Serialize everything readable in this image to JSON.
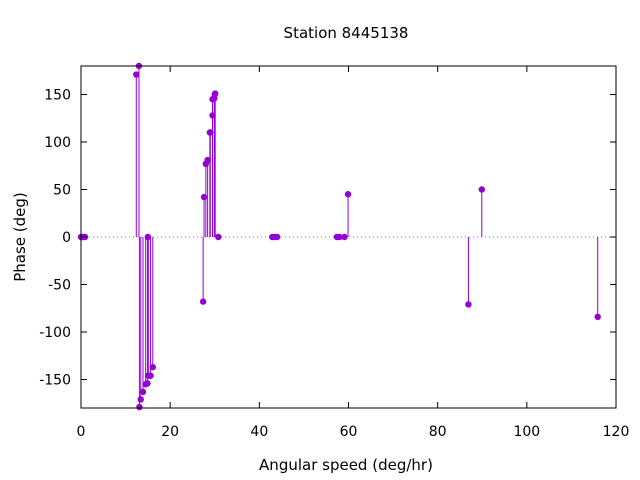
{
  "chart_data": {
    "type": "scatter",
    "style": "impulses-with-points",
    "title": "Station 8445138",
    "xlabel": "Angular speed (deg/hr)",
    "ylabel": "Phase (deg)",
    "xlim": [
      0,
      120
    ],
    "ylim": [
      -180,
      180
    ],
    "xticks": [
      0,
      20,
      40,
      60,
      80,
      100,
      120
    ],
    "yticks": [
      -150,
      -100,
      -50,
      0,
      50,
      100,
      150
    ],
    "xtick_labels": [
      "0",
      "20",
      "40",
      "60",
      "80",
      "100",
      "120"
    ],
    "ytick_labels": [
      "-150",
      "-100",
      "-50",
      "0",
      "50",
      "100",
      "150"
    ],
    "zero_line": true,
    "grid": false,
    "color": "#9400d3",
    "series": [
      {
        "x": [
          0.0,
          0.1,
          0.5,
          0.9,
          12.4,
          13.0,
          13.1,
          13.4,
          13.9,
          14.5,
          14.9,
          15.0,
          15.1,
          15.6,
          16.1,
          27.4,
          27.6,
          28.0,
          28.4,
          28.9,
          29.0,
          29.5,
          29.5,
          29.9,
          30.0,
          30.1,
          30.8,
          42.9,
          43.5,
          44.0,
          57.4,
          58.0,
          59.1,
          59.9,
          86.9,
          89.9,
          115.9
        ],
        "y": [
          0,
          0,
          0,
          0,
          171,
          180,
          -179,
          -171,
          -163,
          -155,
          -154,
          0,
          -146,
          -146,
          -137,
          -68,
          42,
          77,
          81,
          110,
          110,
          145,
          128,
          146,
          150,
          151,
          0,
          0,
          0,
          0,
          0,
          0,
          0,
          45,
          -71,
          50,
          -84
        ]
      }
    ]
  }
}
